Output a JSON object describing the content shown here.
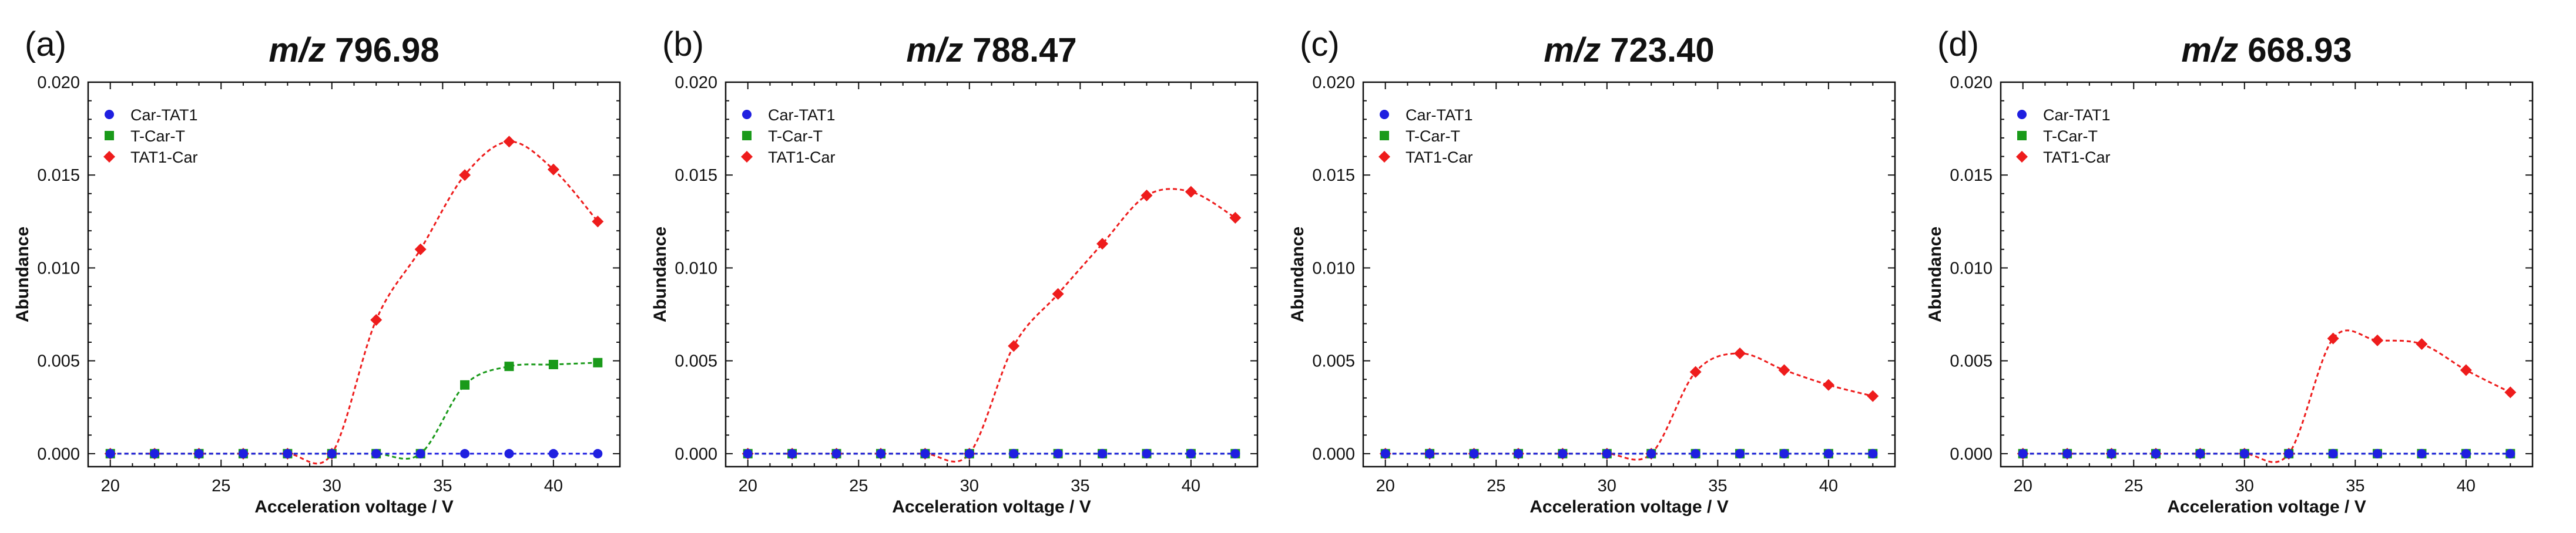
{
  "figure": {
    "legend_entries": [
      {
        "name": "Car-TAT1",
        "color": "#1f1fe0",
        "marker": "circle"
      },
      {
        "name": "T-Car-T",
        "color": "#1a9a1a",
        "marker": "square"
      },
      {
        "name": "TAT1-Car",
        "color": "#ee1c1c",
        "marker": "diamond"
      }
    ]
  },
  "chart_data": [
    {
      "type": "line",
      "panel_label": "(a)",
      "title_prefix": "m/z",
      "title_value": "796.98",
      "xlabel": "Acceleration voltage / V",
      "ylabel": "Abundance",
      "xlim": [
        19,
        43
      ],
      "ylim": [
        -0.0007,
        0.02
      ],
      "xticks": [
        20,
        25,
        30,
        35,
        40
      ],
      "yticks": [
        0.0,
        0.005,
        0.01,
        0.015,
        0.02
      ],
      "ytick_labels": [
        "0.000",
        "0.005",
        "0.010",
        "0.015",
        "0.020"
      ],
      "x": [
        20,
        22,
        24,
        26,
        28,
        30,
        32,
        34,
        36,
        38,
        40,
        42
      ],
      "legend_position": "top-left",
      "series": [
        {
          "name": "Car-TAT1",
          "values": [
            0,
            0,
            0,
            0,
            0,
            0,
            0,
            0,
            0,
            0,
            0,
            0
          ]
        },
        {
          "name": "T-Car-T",
          "values": [
            0,
            0,
            0,
            0,
            0,
            0,
            0,
            0,
            0.0037,
            0.0047,
            0.0048,
            0.0049
          ]
        },
        {
          "name": "TAT1-Car",
          "values": [
            0,
            0,
            0,
            0,
            0,
            0,
            0.0072,
            0.011,
            0.015,
            0.0168,
            0.0153,
            0.0125
          ]
        }
      ]
    },
    {
      "type": "line",
      "panel_label": "(b)",
      "title_prefix": "m/z",
      "title_value": "788.47",
      "xlabel": "Acceleration voltage / V",
      "ylabel": "Abundance",
      "xlim": [
        19,
        43
      ],
      "ylim": [
        -0.0007,
        0.02
      ],
      "xticks": [
        20,
        25,
        30,
        35,
        40
      ],
      "yticks": [
        0.0,
        0.005,
        0.01,
        0.015,
        0.02
      ],
      "ytick_labels": [
        "0.000",
        "0.005",
        "0.010",
        "0.015",
        "0.020"
      ],
      "x": [
        20,
        22,
        24,
        26,
        28,
        30,
        32,
        34,
        36,
        38,
        40,
        42
      ],
      "legend_position": "top-left",
      "series": [
        {
          "name": "Car-TAT1",
          "values": [
            0,
            0,
            0,
            0,
            0,
            0,
            0,
            0,
            0,
            0,
            0,
            0
          ]
        },
        {
          "name": "T-Car-T",
          "values": [
            0,
            0,
            0,
            0,
            0,
            0,
            0,
            0,
            0,
            0,
            0,
            0
          ]
        },
        {
          "name": "TAT1-Car",
          "values": [
            0,
            0,
            0,
            0,
            0,
            0,
            0.0058,
            0.0086,
            0.0113,
            0.0139,
            0.0141,
            0.0127
          ]
        }
      ]
    },
    {
      "type": "line",
      "panel_label": "(c)",
      "title_prefix": "m/z",
      "title_value": "723.40",
      "xlabel": "Acceleration voltage / V",
      "ylabel": "Abundance",
      "xlim": [
        19,
        43
      ],
      "ylim": [
        -0.0007,
        0.02
      ],
      "xticks": [
        20,
        25,
        30,
        35,
        40
      ],
      "yticks": [
        0.0,
        0.005,
        0.01,
        0.015,
        0.02
      ],
      "ytick_labels": [
        "0.000",
        "0.005",
        "0.010",
        "0.015",
        "0.020"
      ],
      "x": [
        20,
        22,
        24,
        26,
        28,
        30,
        32,
        34,
        36,
        38,
        40,
        42
      ],
      "legend_position": "top-left",
      "series": [
        {
          "name": "Car-TAT1",
          "values": [
            0,
            0,
            0,
            0,
            0,
            0,
            0,
            0,
            0,
            0,
            0,
            0
          ]
        },
        {
          "name": "T-Car-T",
          "values": [
            0,
            0,
            0,
            0,
            0,
            0,
            0,
            0,
            0,
            0,
            0,
            0
          ]
        },
        {
          "name": "TAT1-Car",
          "values": [
            0,
            0,
            0,
            0,
            0,
            0,
            0,
            0.0044,
            0.0054,
            0.0045,
            0.0037,
            0.0031
          ]
        }
      ]
    },
    {
      "type": "line",
      "panel_label": "(d)",
      "title_prefix": "m/z",
      "title_value": "668.93",
      "xlabel": "Acceleration voltage / V",
      "ylabel": "Abundance",
      "xlim": [
        19,
        43
      ],
      "ylim": [
        -0.0007,
        0.02
      ],
      "xticks": [
        20,
        25,
        30,
        35,
        40
      ],
      "yticks": [
        0.0,
        0.005,
        0.01,
        0.015,
        0.02
      ],
      "ytick_labels": [
        "0.000",
        "0.005",
        "0.010",
        "0.015",
        "0.020"
      ],
      "x": [
        20,
        22,
        24,
        26,
        28,
        30,
        32,
        34,
        36,
        38,
        40,
        42
      ],
      "legend_position": "top-left",
      "series": [
        {
          "name": "Car-TAT1",
          "values": [
            0,
            0,
            0,
            0,
            0,
            0,
            0,
            0,
            0,
            0,
            0,
            0
          ]
        },
        {
          "name": "T-Car-T",
          "values": [
            0,
            0,
            0,
            0,
            0,
            0,
            0,
            0,
            0,
            0,
            0,
            0
          ]
        },
        {
          "name": "TAT1-Car",
          "values": [
            0,
            0,
            0,
            0,
            0,
            0,
            0,
            0.0062,
            0.0061,
            0.0059,
            0.0045,
            0.0033
          ]
        }
      ]
    }
  ]
}
